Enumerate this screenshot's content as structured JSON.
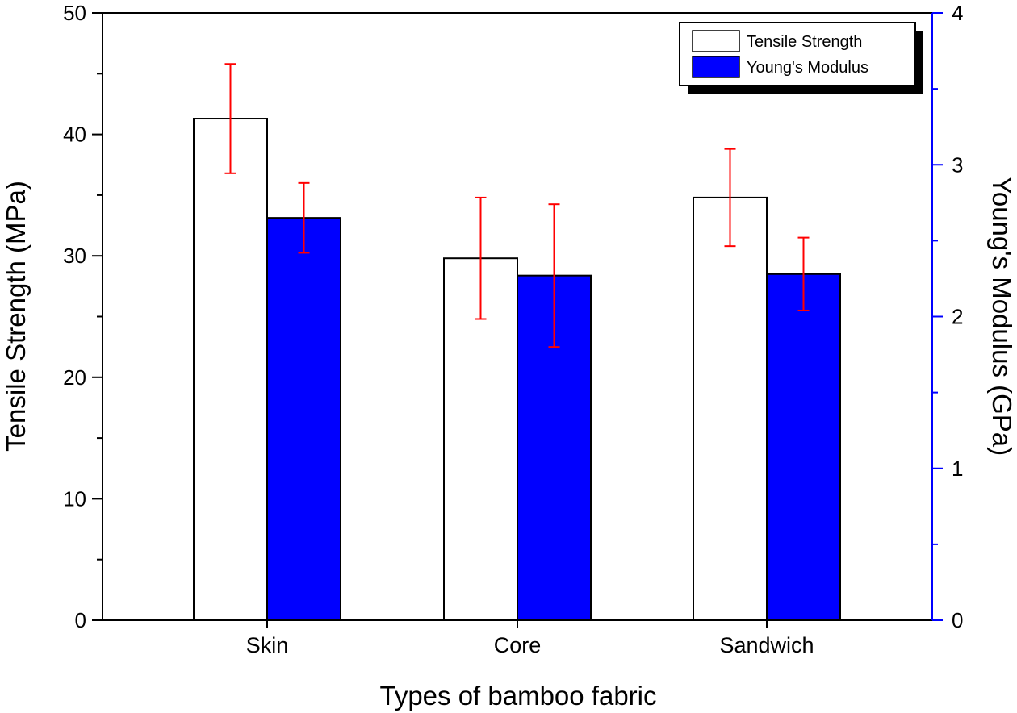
{
  "chart_data": {
    "type": "bar",
    "title": "",
    "xlabel": "Types of bamboo fabric",
    "ylabel": "Tensile Strength (MPa)",
    "y2label": "Young's Modulus (GPa)",
    "categories": [
      "Skin",
      "Core",
      "Sandwich"
    ],
    "ylim": [
      0,
      50
    ],
    "y2lim": [
      0,
      4
    ],
    "yticks": [
      "0",
      "10",
      "20",
      "30",
      "40",
      "50"
    ],
    "y2ticks": [
      "0",
      "1",
      "2",
      "3",
      "4"
    ],
    "legend_position": "top-right",
    "series": [
      {
        "name": "Tensile Strength",
        "axis": "left",
        "fill": "#ffffff",
        "values": [
          41.3,
          29.8,
          34.8
        ],
        "error": [
          4.5,
          5.0,
          4.0
        ]
      },
      {
        "name": "Young's Modulus",
        "axis": "right",
        "fill": "#0000ff",
        "values": [
          2.65,
          2.27,
          2.28
        ],
        "error": [
          0.23,
          0.47,
          0.24
        ]
      }
    ],
    "colors": {
      "axis": "#000000",
      "right_axis": "#0000ff",
      "error_bar": "#ff0000",
      "bar_outline": "#000000"
    }
  }
}
